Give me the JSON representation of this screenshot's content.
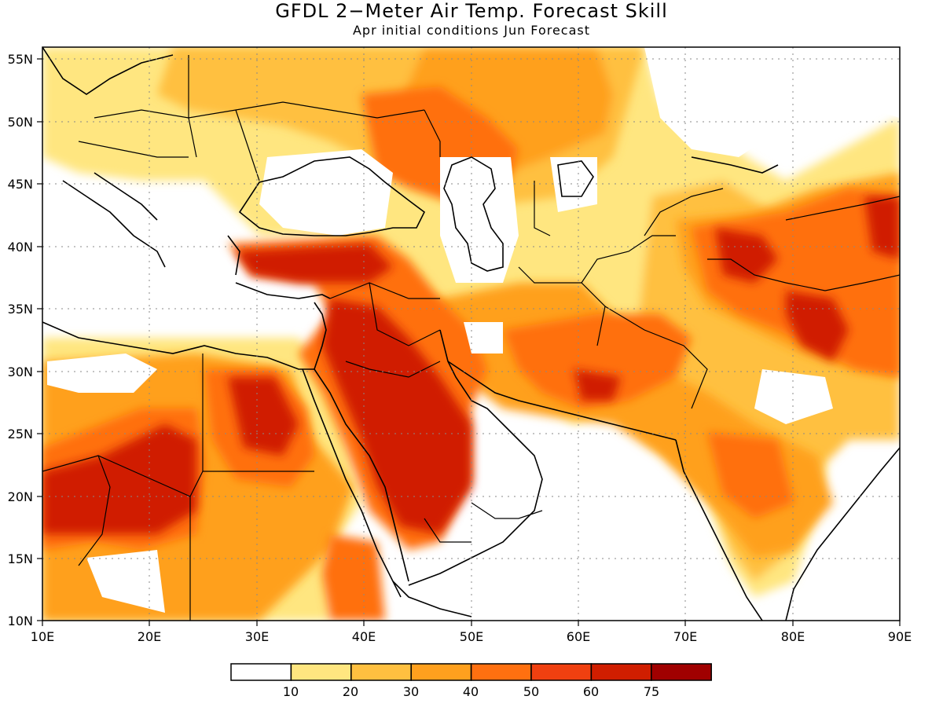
{
  "title": "GFDL 2−Meter Air Temp. Forecast Skill",
  "subtitle": "Apr initial conditions  Jun Forecast",
  "x_ticks": [
    "10E",
    "20E",
    "30E",
    "40E",
    "50E",
    "60E",
    "70E",
    "80E",
    "90E"
  ],
  "y_ticks": [
    "10N",
    "15N",
    "20N",
    "25N",
    "30N",
    "35N",
    "40N",
    "45N",
    "50N",
    "55N"
  ],
  "legend": {
    "labels": [
      "10",
      "20",
      "30",
      "40",
      "50",
      "60",
      "75"
    ],
    "colors": [
      "#ffffff",
      "#ffe680",
      "#ffc040",
      "#ffa01e",
      "#ff7010",
      "#f04010",
      "#d01e00",
      "#a00000"
    ]
  },
  "map": {
    "projection": "cylindrical equidistant",
    "lon_range": [
      10,
      90
    ],
    "lat_range": [
      10,
      56
    ],
    "grid": "dotted",
    "field": "2-meter air temperature forecast skill"
  }
}
